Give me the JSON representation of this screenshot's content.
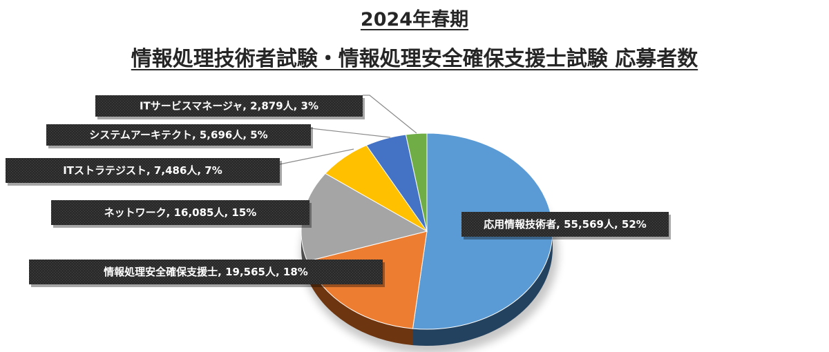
{
  "chart_data": {
    "type": "pie",
    "title": [
      "2024年春期",
      "情報処理技術者試験・情報処理安全確保支援士試験 応募者数"
    ],
    "slices": [
      {
        "label": "応用情報技術者, 55,569人, 52%",
        "value": 55569,
        "color": "#5b9bd5",
        "side_color": "#23425f"
      },
      {
        "label": "情報処理安全確保支援士, 19,565人, 18%",
        "value": 19565,
        "color": "#ed7d31",
        "side_color": "#6e3610"
      },
      {
        "label": "ネットワーク, 16,085人, 15%",
        "value": 16085,
        "color": "#a5a5a5",
        "side_color": "#4d4d4d"
      },
      {
        "label": "ITストラテジスト, 7,486人, 7%",
        "value": 7486,
        "color": "#ffc000",
        "side_color": "#7a5c00"
      },
      {
        "label": "システムアーキテクト, 5,696人, 5%",
        "value": 5696,
        "color": "#4472c4",
        "side_color": "#1f3563"
      },
      {
        "label": "ITサービスマネージャ, 2,879人, 3%",
        "value": 2879,
        "color": "#70ad47",
        "side_color": "#35561f"
      }
    ]
  }
}
